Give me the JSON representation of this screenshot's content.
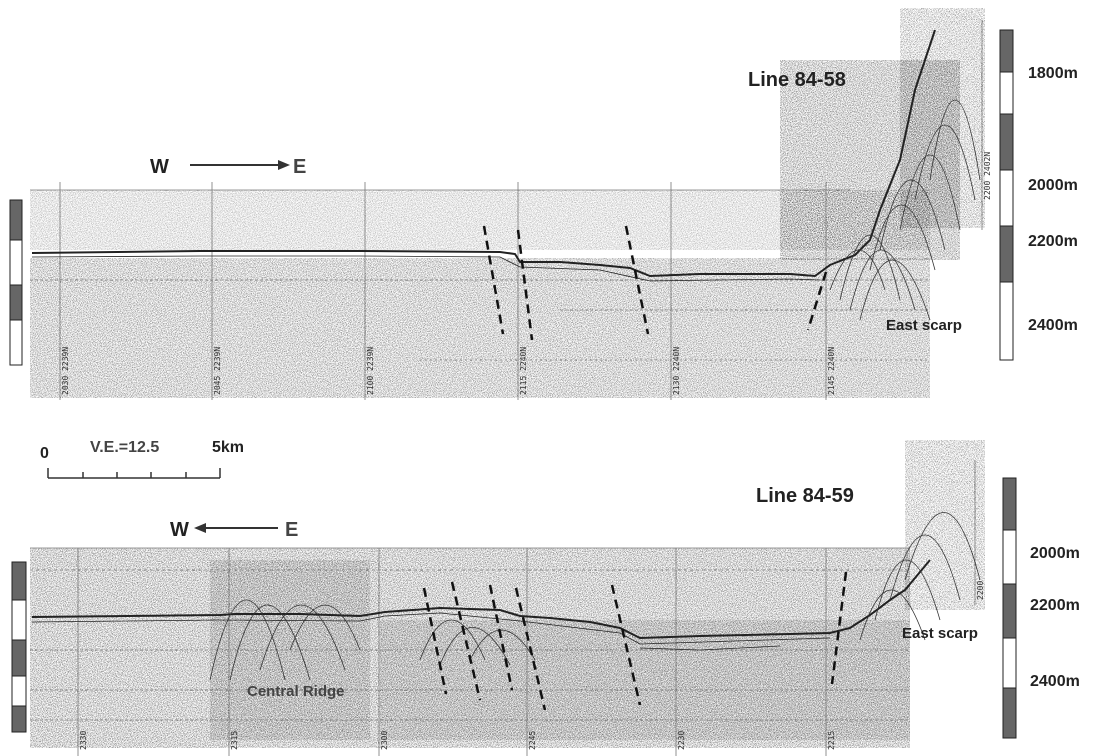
{
  "profiles": [
    {
      "title": "Line 84-58",
      "direction": {
        "left": "W",
        "right": "E"
      },
      "depth_scale": [
        "1800m",
        "2000m",
        "2200m",
        "2400m"
      ],
      "annotation": "East scarp",
      "fix_marks": [
        "2030 2239N",
        "2045 2239N",
        "2100 2239N",
        "2115 2240N",
        "2130 2240N",
        "2145 2240N",
        "2200 2402N"
      ]
    },
    {
      "title": "Line 84-59",
      "direction": {
        "left": "W",
        "right": "E"
      },
      "depth_scale": [
        "2000m",
        "2200m",
        "2400m"
      ],
      "annotations": [
        "Central Ridge",
        "East scarp"
      ],
      "fix_marks": [
        "2330",
        "2315",
        "2300",
        "2245",
        "2230",
        "2215",
        "2200"
      ]
    }
  ],
  "scale_bar": {
    "start": "0",
    "end": "5km",
    "ve": "V.E.=12.5"
  }
}
